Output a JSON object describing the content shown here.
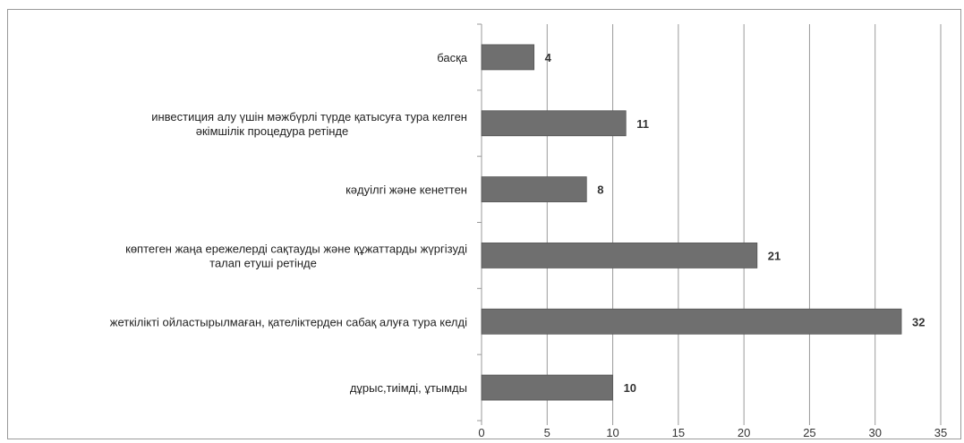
{
  "chart_data": {
    "type": "bar",
    "orientation": "horizontal",
    "categories": [
      [
        "басқа"
      ],
      [
        "инвестиция алу үшін мәжбүрлі түрде қатысуға тура келген",
        "әкімшілік процедура ретінде"
      ],
      [
        "кәдуілгі және кенеттен"
      ],
      [
        "көптеген жаңа ережелерді сақтауды және құжаттарды жүргізуді",
        "талап етуші ретінде"
      ],
      [
        "жеткілікті ойластырылмаған, қателіктерден сабақ алуға тура келді"
      ],
      [
        "дұрыс,тиімді, ұтымды"
      ]
    ],
    "values": [
      4,
      11,
      8,
      21,
      32,
      10
    ],
    "xlim": [
      0,
      35
    ],
    "xticks": [
      0,
      5,
      10,
      15,
      20,
      25,
      30,
      35
    ],
    "grid": "vertical",
    "bar_color": "#6f6f6f",
    "title": "",
    "xlabel": "",
    "ylabel": ""
  }
}
